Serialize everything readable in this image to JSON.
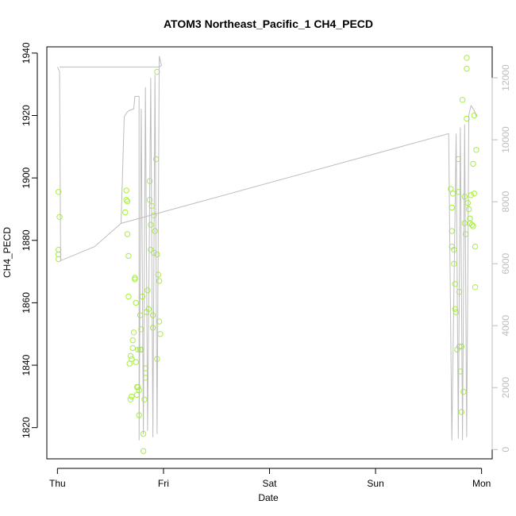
{
  "chart_data": {
    "type": "scatter",
    "title": "ATOM3 Northeast_Pacific_1 CH4_PECD",
    "xlabel": "Date",
    "ylabel": "CH4_PECD",
    "x_axis_unit": "days",
    "xlim": [
      -0.1,
      4.1
    ],
    "ylim": [
      1810,
      1942
    ],
    "y2lim": [
      -300,
      13000
    ],
    "x_ticks": [
      {
        "value": 0,
        "label": "Thu"
      },
      {
        "value": 1,
        "label": "Fri"
      },
      {
        "value": 2,
        "label": "Sat"
      },
      {
        "value": 3,
        "label": "Sun"
      },
      {
        "value": 4,
        "label": "Mon"
      }
    ],
    "y_ticks": [
      1820,
      1840,
      1860,
      1880,
      1900,
      1920,
      1940
    ],
    "y2_ticks": [
      0,
      2000,
      4000,
      6000,
      8000,
      10000,
      12000
    ],
    "grid": false,
    "series": [
      {
        "role": "CH4 points",
        "color": "#a6f03c",
        "marker": "open-circle",
        "axis": "left",
        "points": [
          [
            0.01,
            1895.5
          ],
          [
            0.02,
            1887.5
          ],
          [
            0.01,
            1877
          ],
          [
            0.01,
            1875.5
          ],
          [
            0.01,
            1874
          ],
          [
            0.64,
            1889
          ],
          [
            0.65,
            1896
          ],
          [
            0.65,
            1893
          ],
          [
            0.66,
            1892.5
          ],
          [
            0.66,
            1882
          ],
          [
            0.67,
            1875
          ],
          [
            0.67,
            1862
          ],
          [
            0.68,
            1840.5
          ],
          [
            0.69,
            1843
          ],
          [
            0.69,
            1829
          ],
          [
            0.7,
            1830
          ],
          [
            0.7,
            1842
          ],
          [
            0.71,
            1845.5
          ],
          [
            0.71,
            1848
          ],
          [
            0.72,
            1850.5
          ],
          [
            0.73,
            1868
          ],
          [
            0.73,
            1867.5
          ],
          [
            0.74,
            1860
          ],
          [
            0.74,
            1841
          ],
          [
            0.75,
            1830.5
          ],
          [
            0.75,
            1833
          ],
          [
            0.76,
            1833
          ],
          [
            0.76,
            1845
          ],
          [
            0.77,
            1824
          ],
          [
            0.77,
            1832
          ],
          [
            0.78,
            1845
          ],
          [
            0.78,
            1856
          ],
          [
            0.79,
            1845
          ],
          [
            0.79,
            1851.5
          ],
          [
            0.8,
            1862
          ],
          [
            0.81,
            1818
          ],
          [
            0.81,
            1812.5
          ],
          [
            0.82,
            1829
          ],
          [
            0.83,
            1839
          ],
          [
            0.83,
            1836
          ],
          [
            0.84,
            1857
          ],
          [
            0.85,
            1864
          ],
          [
            0.86,
            1858
          ],
          [
            0.87,
            1899
          ],
          [
            0.87,
            1893
          ],
          [
            0.88,
            1885
          ],
          [
            0.88,
            1877
          ],
          [
            0.89,
            1891
          ],
          [
            0.9,
            1852
          ],
          [
            0.9,
            1856
          ],
          [
            0.91,
            1876
          ],
          [
            0.91,
            1888
          ],
          [
            0.92,
            1883
          ],
          [
            0.93,
            1906
          ],
          [
            0.94,
            1875.5
          ],
          [
            0.95,
            1869
          ],
          [
            0.94,
            1842
          ],
          [
            0.96,
            1867
          ],
          [
            0.96,
            1854
          ],
          [
            0.97,
            1850
          ],
          [
            0.94,
            1934
          ],
          [
            3.71,
            1896.5
          ],
          [
            3.72,
            1890.5
          ],
          [
            3.72,
            1883
          ],
          [
            3.72,
            1878
          ],
          [
            3.73,
            1895
          ],
          [
            3.74,
            1877
          ],
          [
            3.74,
            1872.5
          ],
          [
            3.75,
            1866
          ],
          [
            3.75,
            1858
          ],
          [
            3.76,
            1857
          ],
          [
            3.77,
            1845
          ],
          [
            3.78,
            1895.5
          ],
          [
            3.78,
            1906
          ],
          [
            3.79,
            1863.5
          ],
          [
            3.79,
            1846
          ],
          [
            3.8,
            1838
          ],
          [
            3.81,
            1846
          ],
          [
            3.81,
            1825
          ],
          [
            3.82,
            1925
          ],
          [
            3.83,
            1831.5
          ],
          [
            3.84,
            1885.5
          ],
          [
            3.84,
            1894
          ],
          [
            3.85,
            1882
          ],
          [
            3.86,
            1938.5
          ],
          [
            3.86,
            1935
          ],
          [
            3.86,
            1919
          ],
          [
            3.87,
            1892
          ],
          [
            3.88,
            1890
          ],
          [
            3.89,
            1885.5
          ],
          [
            3.89,
            1887
          ],
          [
            3.9,
            1894.5
          ],
          [
            3.91,
            1885
          ],
          [
            3.92,
            1904.5
          ],
          [
            3.92,
            1884.5
          ],
          [
            3.93,
            1895
          ],
          [
            3.93,
            1920
          ],
          [
            3.94,
            1878
          ],
          [
            3.94,
            1865
          ],
          [
            3.95,
            1909
          ]
        ]
      },
      {
        "role": "Altitude trace",
        "color": "#bdbdbd",
        "axis": "right",
        "points": [
          [
            0.0,
            12350
          ],
          [
            0.02,
            12200
          ],
          [
            0.03,
            6100
          ],
          [
            0.35,
            6550
          ],
          [
            0.6,
            7300
          ],
          [
            0.63,
            10750
          ],
          [
            0.66,
            10900
          ],
          [
            0.68,
            10950
          ],
          [
            0.72,
            11000
          ],
          [
            0.73,
            11400
          ],
          [
            0.77,
            11400
          ],
          [
            0.77,
            300
          ],
          [
            0.79,
            11000
          ],
          [
            0.81,
            500
          ],
          [
            0.83,
            11700
          ],
          [
            0.85,
            600
          ],
          [
            0.88,
            12000
          ],
          [
            0.9,
            400
          ],
          [
            0.92,
            12100
          ],
          [
            0.94,
            500
          ],
          [
            0.96,
            12700
          ],
          [
            0.98,
            12400
          ],
          [
            0.96,
            12350
          ],
          [
            0.02,
            12350
          ]
        ],
        "points2": [
          [
            0.6,
            7300
          ],
          [
            3.69,
            10200
          ],
          [
            3.72,
            300
          ],
          [
            3.76,
            10200
          ],
          [
            3.78,
            350
          ],
          [
            3.8,
            10400
          ],
          [
            3.82,
            300
          ],
          [
            3.84,
            10500
          ],
          [
            3.86,
            400
          ],
          [
            3.88,
            10800
          ],
          [
            3.9,
            11100
          ],
          [
            3.93,
            10950
          ],
          [
            3.95,
            10750
          ]
        ]
      }
    ]
  }
}
